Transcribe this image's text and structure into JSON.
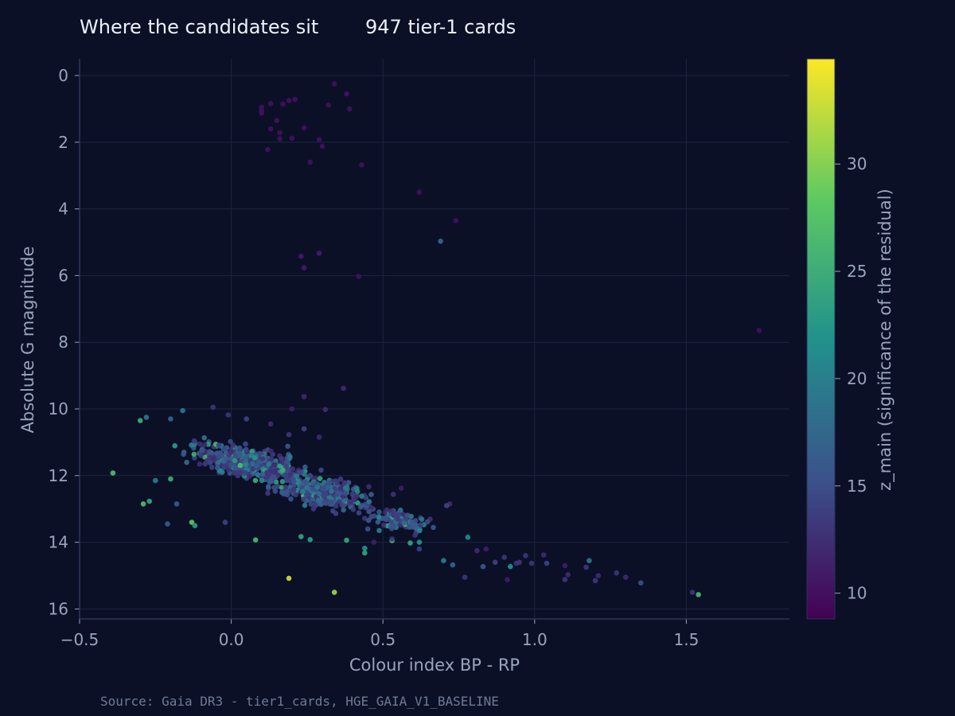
{
  "header": {
    "title": "Where the candidates sit",
    "subtitle": "947 tier-1 cards"
  },
  "footer": {
    "source": "Source: Gaia DR3 - tier1_cards, HGE_GAIA_V1_BASELINE"
  },
  "colors": {
    "background": "#0b1026",
    "text": "#9aa4bd",
    "grid": "#1c2440",
    "colormap": [
      "#440154",
      "#3b528b",
      "#21918c",
      "#5ec962",
      "#fde725"
    ]
  },
  "chart_data": {
    "type": "scatter",
    "xlabel": "Colour index  BP - RP",
    "ylabel": "Absolute G magnitude",
    "xlim": [
      -0.5,
      1.84
    ],
    "ylim": [
      16.3,
      -0.5
    ],
    "y_inverted": true,
    "x_ticks": [
      -0.5,
      0.0,
      0.5,
      1.0,
      1.5
    ],
    "x_tick_labels": [
      "−0.5",
      "0.0",
      "0.5",
      "1.0",
      "1.5"
    ],
    "y_ticks": [
      0,
      2,
      4,
      6,
      8,
      10,
      12,
      14,
      16
    ],
    "y_tick_labels": [
      "0",
      "2",
      "4",
      "6",
      "8",
      "10",
      "12",
      "14",
      "16"
    ],
    "grid": true,
    "colorbar": {
      "label": "z_main  (significance of the residual)",
      "range": [
        8.8,
        34.9
      ],
      "ticks": [
        10,
        15,
        20,
        25,
        30
      ],
      "tick_labels": [
        "10",
        "15",
        "20",
        "25",
        "30"
      ]
    },
    "series": [
      {
        "points": [
          [
            0.34,
            0.25,
            10
          ],
          [
            0.38,
            0.55,
            10
          ],
          [
            0.21,
            0.72,
            10
          ],
          [
            0.19,
            0.75,
            10
          ],
          [
            0.13,
            0.84,
            10
          ],
          [
            0.17,
            0.85,
            10
          ],
          [
            0.32,
            0.88,
            10
          ],
          [
            0.1,
            0.95,
            10
          ],
          [
            0.39,
            1.0,
            10
          ],
          [
            0.1,
            1.06,
            10
          ],
          [
            0.1,
            1.13,
            10
          ],
          [
            0.15,
            1.35,
            10
          ],
          [
            0.24,
            1.57,
            10
          ],
          [
            0.13,
            1.6,
            10
          ],
          [
            0.16,
            1.72,
            10
          ],
          [
            0.2,
            1.88,
            10
          ],
          [
            0.16,
            1.9,
            10
          ],
          [
            0.29,
            1.93,
            10
          ],
          [
            0.3,
            2.12,
            10
          ],
          [
            0.12,
            2.22,
            10
          ],
          [
            0.26,
            2.6,
            10
          ],
          [
            0.43,
            2.68,
            10
          ],
          [
            0.62,
            3.5,
            10
          ],
          [
            0.74,
            4.35,
            10
          ],
          [
            0.69,
            4.97,
            17.5
          ],
          [
            0.29,
            5.33,
            11
          ],
          [
            0.23,
            5.42,
            11
          ],
          [
            0.24,
            5.77,
            11
          ],
          [
            0.42,
            6.03,
            10
          ],
          [
            1.74,
            7.65,
            10
          ],
          [
            0.37,
            9.38,
            12
          ],
          [
            0.24,
            9.63,
            12
          ],
          [
            -0.06,
            9.95,
            13
          ],
          [
            0.2,
            10.0,
            11
          ],
          [
            0.31,
            10.02,
            12
          ],
          [
            -0.3,
            10.35,
            25
          ],
          [
            -0.28,
            10.25,
            19
          ],
          [
            -0.16,
            10.05,
            19
          ],
          [
            -0.2,
            10.3,
            17
          ],
          [
            -0.39,
            11.92,
            27
          ],
          [
            -0.29,
            12.85,
            27
          ],
          [
            -0.27,
            12.77,
            24
          ],
          [
            -0.21,
            13.45,
            16
          ],
          [
            -0.13,
            13.4,
            28
          ],
          [
            -0.12,
            13.5,
            23
          ],
          [
            -0.02,
            13.4,
            14
          ],
          [
            -0.25,
            12.15,
            20
          ],
          [
            -0.2,
            12.1,
            25
          ],
          [
            -0.18,
            12.85,
            16
          ],
          [
            0.08,
            13.93,
            26
          ],
          [
            0.19,
            15.08,
            33
          ],
          [
            0.34,
            15.5,
            31
          ],
          [
            0.23,
            13.83,
            24
          ],
          [
            0.26,
            13.92,
            23
          ],
          [
            0.38,
            13.94,
            24
          ],
          [
            0.44,
            14.18,
            22
          ],
          [
            0.44,
            14.32,
            24
          ],
          [
            0.53,
            13.95,
            26
          ],
          [
            0.59,
            14.02,
            24
          ],
          [
            0.62,
            14.0,
            22
          ],
          [
            0.78,
            13.85,
            21
          ],
          [
            0.62,
            14.2,
            14
          ],
          [
            0.7,
            14.55,
            20
          ],
          [
            0.73,
            14.68,
            17
          ],
          [
            0.83,
            14.73,
            16
          ],
          [
            0.77,
            15.05,
            13
          ],
          [
            0.91,
            15.12,
            11
          ],
          [
            0.87,
            14.6,
            14
          ],
          [
            0.95,
            14.6,
            13
          ],
          [
            0.97,
            14.4,
            13
          ],
          [
            1.03,
            14.38,
            12
          ],
          [
            1.04,
            14.63,
            14
          ],
          [
            1.1,
            14.7,
            11
          ],
          [
            1.1,
            15.12,
            13
          ],
          [
            1.11,
            14.97,
            12
          ],
          [
            1.17,
            14.75,
            13
          ],
          [
            1.18,
            14.55,
            19
          ],
          [
            1.2,
            15.15,
            13
          ],
          [
            1.21,
            15.0,
            12
          ],
          [
            1.27,
            14.92,
            13
          ],
          [
            1.3,
            15.05,
            12
          ],
          [
            1.35,
            15.22,
            15
          ],
          [
            1.52,
            15.5,
            13
          ],
          [
            1.54,
            15.57,
            26
          ],
          [
            0.92,
            14.73,
            22
          ],
          [
            0.9,
            14.45,
            13
          ],
          [
            0.94,
            14.63,
            13
          ],
          [
            0.99,
            14.63,
            13
          ],
          [
            0.84,
            14.2,
            11
          ],
          [
            0.81,
            14.25,
            12
          ],
          [
            0.72,
            12.85,
            12
          ],
          [
            0.71,
            12.9,
            14
          ],
          [
            0.56,
            12.38,
            11
          ],
          [
            0.53,
            13.9,
            13
          ],
          [
            0.47,
            14.0,
            11
          ],
          [
            0.45,
            13.6,
            15
          ],
          [
            0.29,
            10.85,
            12
          ],
          [
            0.24,
            10.6,
            14
          ],
          [
            0.13,
            10.45,
            12
          ],
          [
            -0.01,
            10.18,
            13
          ],
          [
            0.05,
            10.3,
            14
          ],
          [
            0.19,
            10.77,
            13
          ]
        ]
      }
    ],
    "clusters": [
      {
        "n": 430,
        "center": [
          0.06,
          11.6
        ],
        "spread": [
          0.16,
          0.55
        ]
      },
      {
        "n": 330,
        "center": [
          0.3,
          12.5
        ],
        "spread": [
          0.14,
          0.55
        ]
      },
      {
        "n": 110,
        "center": [
          0.55,
          13.35
        ],
        "spread": [
          0.1,
          0.38
        ]
      }
    ]
  }
}
